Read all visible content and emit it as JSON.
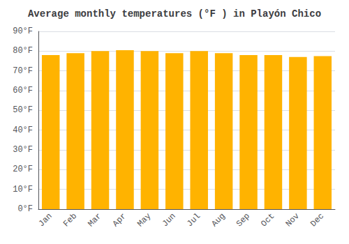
{
  "chart_data": {
    "type": "bar",
    "title": "Average monthly temperatures (°F ) in Playón Chico",
    "categories": [
      "Jan",
      "Feb",
      "Mar",
      "Apr",
      "May",
      "Jun",
      "Jul",
      "Aug",
      "Sep",
      "Oct",
      "Nov",
      "Dec"
    ],
    "values": [
      78,
      79,
      80,
      80.5,
      80,
      79,
      80,
      79,
      78,
      78,
      77,
      77.5
    ],
    "color": "#FFB300",
    "ylim": [
      0,
      90
    ],
    "yticks": [
      {
        "value": 0,
        "label": "0°F"
      },
      {
        "value": 10,
        "label": "10°F"
      },
      {
        "value": 20,
        "label": "20°F"
      },
      {
        "value": 30,
        "label": "30°F"
      },
      {
        "value": 40,
        "label": "40°F"
      },
      {
        "value": 50,
        "label": "50°F"
      },
      {
        "value": 60,
        "label": "60°F"
      },
      {
        "value": 70,
        "label": "70°F"
      },
      {
        "value": 80,
        "label": "80°F"
      },
      {
        "value": 90,
        "label": "90°F"
      }
    ],
    "grid": true
  }
}
